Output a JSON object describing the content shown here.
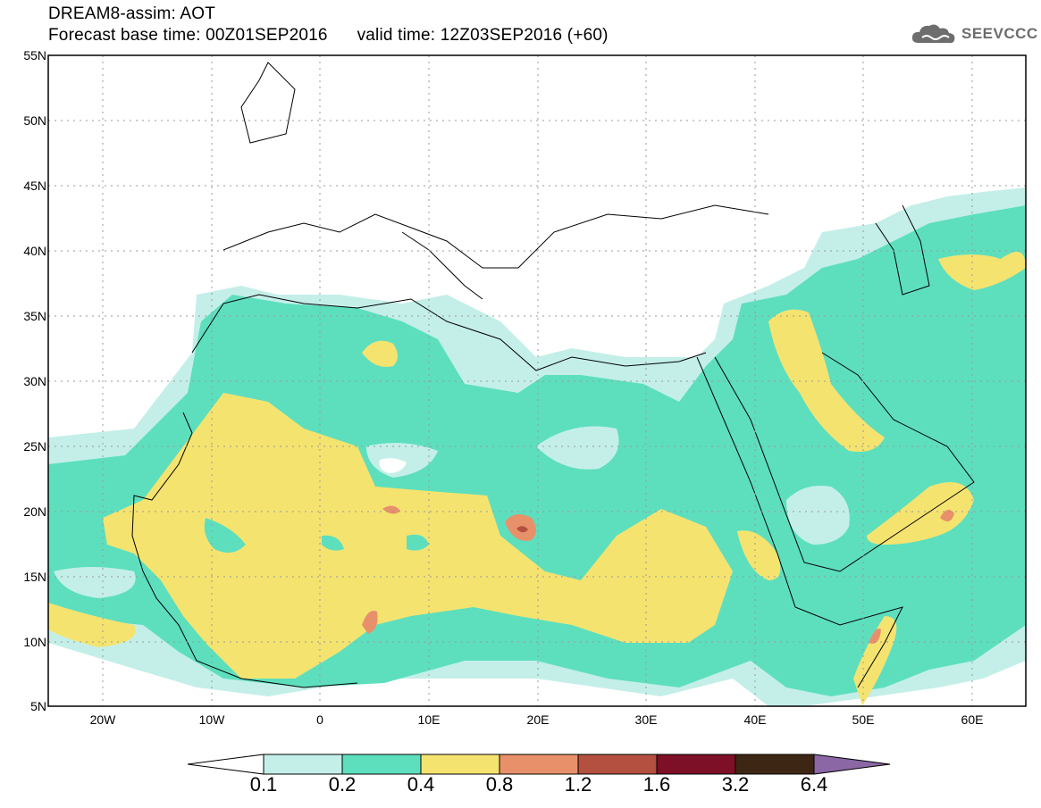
{
  "header": {
    "title": "DREAM8-assim: AOT",
    "base_time_label": "Forecast base time: 00Z01SEP2016",
    "valid_time_label": "valid time: 12Z03SEP2016 (+60)"
  },
  "logo": {
    "text": "SEEVCCC",
    "icon": "cloud-icon"
  },
  "map": {
    "lat_labels": [
      "55N",
      "50N",
      "45N",
      "40N",
      "35N",
      "30N",
      "25N",
      "20N",
      "15N",
      "10N",
      "5N"
    ],
    "lon_labels": [
      "20W",
      "10W",
      "0",
      "10E",
      "20E",
      "30E",
      "40E",
      "50E",
      "60E"
    ],
    "lat_range": [
      5,
      55
    ],
    "lon_range": [
      -25,
      65
    ]
  },
  "colorbar": {
    "labels": [
      "0.1",
      "0.2",
      "0.4",
      "0.8",
      "1.2",
      "1.6",
      "3.2",
      "6.4"
    ],
    "colors": [
      "#c4efe9",
      "#5ddfbe",
      "#f5e370",
      "#e8906a",
      "#b4503f",
      "#7d0f27",
      "#3e2615",
      "#8b67a6"
    ],
    "below_color": "#ffffff"
  }
}
